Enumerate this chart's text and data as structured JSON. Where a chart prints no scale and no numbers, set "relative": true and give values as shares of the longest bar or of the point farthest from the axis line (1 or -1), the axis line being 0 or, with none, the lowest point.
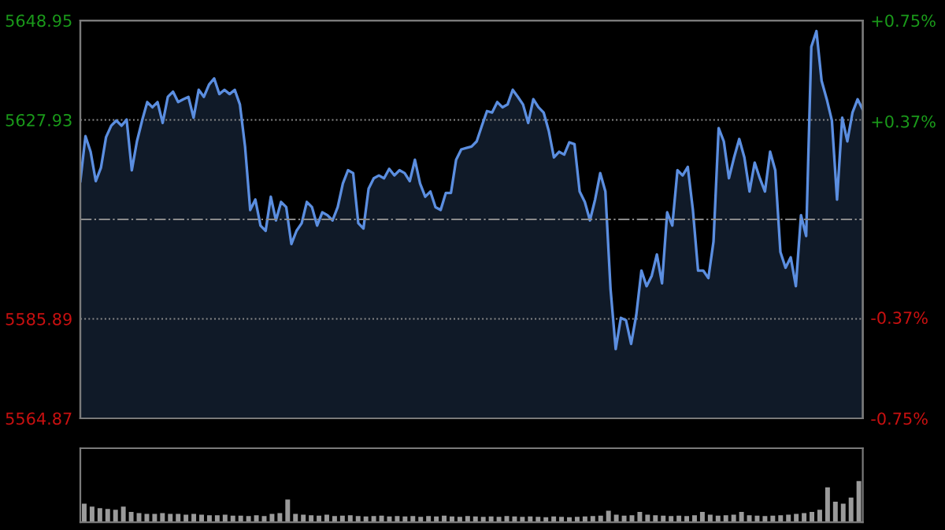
{
  "chart_data": [
    {
      "type": "area",
      "categories": [
        null,
        null,
        null,
        null,
        null,
        null,
        null,
        null,
        null,
        null,
        null,
        null,
        null,
        null,
        null,
        null,
        null,
        null,
        null,
        null,
        null,
        null,
        null,
        null,
        null,
        null,
        null,
        null,
        null,
        null,
        null,
        null,
        null,
        null,
        null,
        null,
        null,
        null,
        null,
        null,
        null,
        null,
        null,
        null,
        null,
        null,
        null,
        null,
        null,
        null,
        null,
        null,
        null,
        null,
        null,
        null,
        null,
        null,
        null,
        null,
        null,
        null,
        null,
        null,
        null,
        null,
        null,
        null,
        null,
        null,
        null,
        null,
        null,
        null,
        null,
        null,
        null,
        null,
        null,
        null,
        null,
        null,
        null,
        null,
        null,
        null,
        null,
        null,
        null,
        null,
        null,
        null,
        null,
        null,
        null,
        null,
        null,
        null,
        null,
        null,
        null,
        null,
        null,
        null,
        null,
        null,
        null,
        null,
        null,
        null,
        null,
        null,
        null,
        null,
        null,
        null,
        null,
        null,
        null,
        null,
        null,
        null,
        null,
        null,
        null,
        null,
        null,
        null,
        null,
        null,
        null,
        null,
        null,
        null,
        null,
        null,
        null,
        null,
        null,
        null,
        null,
        null,
        null,
        null,
        null,
        null,
        null,
        null,
        null,
        null,
        null,
        null,
        null
      ],
      "series": [
        {
          "color": "#5b8ee0",
          "values": [
            5615.0,
            5624.5,
            5621.2,
            5615.0,
            5617.8,
            5624.3,
            5626.7,
            5627.8,
            5626.7,
            5628.0,
            5617.3,
            5623.4,
            5627.8,
            5631.7,
            5630.6,
            5631.7,
            5627.3,
            5632.8,
            5633.9,
            5631.7,
            5632.3,
            5632.8,
            5628.4,
            5634.3,
            5632.8,
            5635.4,
            5636.7,
            5633.4,
            5634.3,
            5633.4,
            5634.3,
            5631.2,
            5622.3,
            5608.9,
            5611.1,
            5605.6,
            5604.5,
            5611.7,
            5606.7,
            5610.6,
            5609.5,
            5601.7,
            5604.5,
            5606.1,
            5610.6,
            5609.5,
            5605.6,
            5608.4,
            5607.8,
            5606.7,
            5609.5,
            5614.5,
            5617.3,
            5616.7,
            5606.1,
            5605.0,
            5613.4,
            5615.6,
            5616.2,
            5615.6,
            5617.6,
            5616.2,
            5617.3,
            5616.7,
            5615.0,
            5619.5,
            5614.5,
            5611.7,
            5612.8,
            5609.5,
            5608.9,
            5612.5,
            5612.5,
            5619.5,
            5621.7,
            5622.0,
            5622.3,
            5623.4,
            5626.7,
            5629.8,
            5629.5,
            5631.7,
            5630.6,
            5631.2,
            5634.3,
            5632.8,
            5631.2,
            5627.3,
            5632.3,
            5630.6,
            5629.5,
            5625.6,
            5620.0,
            5621.2,
            5620.6,
            5623.2,
            5622.8,
            5612.8,
            5610.6,
            5606.7,
            5611.1,
            5616.7,
            5612.8,
            5592.2,
            5579.5,
            5586.1,
            5585.6,
            5580.6,
            5586.7,
            5596.1,
            5592.8,
            5595.0,
            5599.5,
            5593.4,
            5608.4,
            5605.6,
            5617.3,
            5616.2,
            5618.0,
            5608.9,
            5596.1,
            5596.1,
            5594.5,
            5602.2,
            5626.2,
            5623.4,
            5615.6,
            5620.0,
            5623.9,
            5620.0,
            5612.8,
            5618.9,
            5615.6,
            5612.8,
            5621.2,
            5617.3,
            5600.0,
            5596.7,
            5598.9,
            5592.8,
            5607.8,
            5603.4,
            5643.4,
            5646.7,
            5636.2,
            5632.3,
            5627.8,
            5611.1,
            5628.4,
            5623.4,
            5629.5,
            5632.3,
            5630.1
          ]
        }
      ],
      "ylim": [
        5564.87,
        5648.95
      ],
      "yticks": [
        5564.87,
        5585.89,
        5627.93,
        5648.95
      ],
      "y2lim": [
        -0.75,
        0.75
      ],
      "y2ticks": [
        {
          "value": -0.75,
          "label": "-0.75%"
        },
        {
          "value": -0.37,
          "label": "-0.37%"
        },
        {
          "value": 0.37,
          "label": "+0.37%"
        },
        {
          "value": 0.75,
          "label": "+0.75%"
        }
      ],
      "ref_lines": [
        {
          "axis": "y",
          "value": 5606.91,
          "color": "#8a8a8a",
          "line_style": "dashed"
        }
      ],
      "grid": "y",
      "tick_labels": "y",
      "line_style": "solid"
    },
    {
      "type": "bar",
      "relative": true,
      "color": "#9a9a9a",
      "tick_labels": false,
      "categories": [
        null,
        null,
        null,
        null,
        null,
        null,
        null,
        null,
        null,
        null,
        null,
        null,
        null,
        null,
        null,
        null,
        null,
        null,
        null,
        null,
        null,
        null,
        null,
        null,
        null,
        null,
        null,
        null,
        null,
        null,
        null,
        null,
        null,
        null,
        null,
        null,
        null,
        null,
        null,
        null,
        null,
        null,
        null,
        null,
        null,
        null,
        null,
        null,
        null,
        null,
        null,
        null,
        null,
        null,
        null,
        null,
        null,
        null,
        null,
        null,
        null,
        null,
        null,
        null,
        null,
        null,
        null,
        null,
        null,
        null,
        null,
        null,
        null,
        null,
        null,
        null,
        null,
        null,
        null,
        null,
        null,
        null,
        null,
        null,
        null,
        null,
        null,
        null,
        null,
        null,
        null,
        null,
        null,
        null,
        null,
        null,
        null,
        null,
        null,
        null
      ],
      "values": [
        0.45,
        0.38,
        0.34,
        0.32,
        0.3,
        0.38,
        0.25,
        0.22,
        0.2,
        0.2,
        0.22,
        0.2,
        0.2,
        0.18,
        0.2,
        0.18,
        0.17,
        0.17,
        0.18,
        0.16,
        0.16,
        0.15,
        0.17,
        0.15,
        0.2,
        0.22,
        0.55,
        0.2,
        0.18,
        0.17,
        0.16,
        0.18,
        0.15,
        0.16,
        0.17,
        0.15,
        0.14,
        0.15,
        0.16,
        0.14,
        0.15,
        0.14,
        0.15,
        0.13,
        0.15,
        0.14,
        0.16,
        0.14,
        0.13,
        0.15,
        0.14,
        0.13,
        0.14,
        0.13,
        0.15,
        0.14,
        0.13,
        0.14,
        0.13,
        0.12,
        0.14,
        0.13,
        0.12,
        0.13,
        0.14,
        0.15,
        0.16,
        0.28,
        0.18,
        0.16,
        0.17,
        0.25,
        0.18,
        0.17,
        0.16,
        0.15,
        0.16,
        0.15,
        0.17,
        0.25,
        0.18,
        0.16,
        0.17,
        0.18,
        0.25,
        0.17,
        0.16,
        0.15,
        0.16,
        0.17,
        0.18,
        0.2,
        0.22,
        0.25,
        0.3,
        0.85,
        0.5,
        0.45,
        0.6,
        1.0
      ]
    }
  ]
}
